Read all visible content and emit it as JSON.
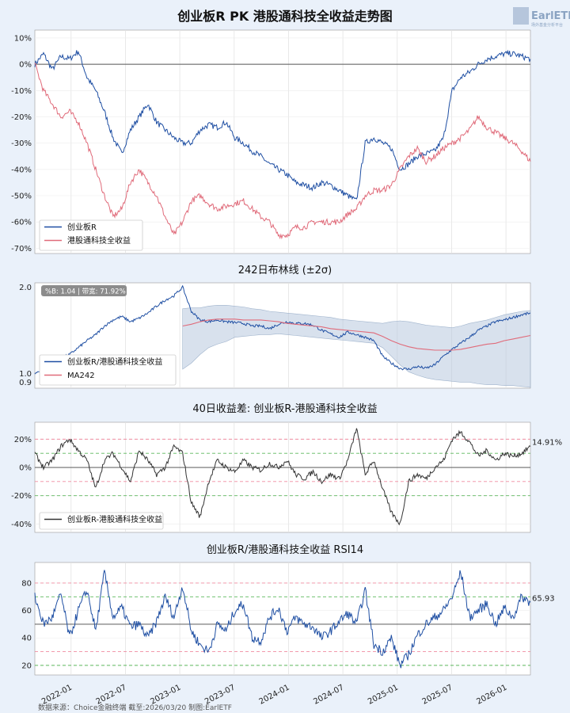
{
  "main_title": "创业板R PK 港股通科技全收益走势图",
  "logo": {
    "brand": "EarlETF",
    "sub": "场外基金分析平台"
  },
  "source": "数据来源：Choice金融终端 截至:2026/03/20 制图:EarlETF",
  "x_ticks": [
    "2022-01",
    "2022-07",
    "2023-01",
    "2023-07",
    "2024-01",
    "2024-07",
    "2025-01",
    "2025-07",
    "2026-01"
  ],
  "colors": {
    "blue": "#1f4fa3",
    "red": "#e06b7a",
    "band": "#b8c9de",
    "black": "#333333",
    "green_dash": "#5cb85c",
    "red_dash": "#f08ca0"
  },
  "chart_data": [
    {
      "type": "line",
      "title": "创业板R PK 港股通科技全收益走势图",
      "ylim": [
        -72,
        13
      ],
      "y_ticks": [
        "10%",
        "0%",
        "-10%",
        "-20%",
        "-30%",
        "-40%",
        "-50%",
        "-60%",
        "-70%"
      ],
      "legend": [
        "创业板R",
        "港股通科技全收益"
      ],
      "legend_position": "lower-left",
      "series": [
        {
          "name": "创业板R",
          "color": "blue",
          "values": [
            0,
            4,
            -2,
            3,
            2,
            5,
            -5,
            -10,
            -18,
            -28,
            -34,
            -25,
            -20,
            -15,
            -22,
            -25,
            -28,
            -30,
            -30,
            -25,
            -23,
            -24,
            -22,
            -28,
            -30,
            -33,
            -35,
            -38,
            -40,
            -42,
            -45,
            -46,
            -47,
            -45,
            -46,
            -48,
            -50,
            -52,
            -30,
            -28,
            -30,
            -32,
            -40,
            -38,
            -35,
            -34,
            -33,
            -28,
            -10,
            -5,
            -3,
            0,
            2,
            3,
            4,
            4,
            3,
            2
          ]
        },
        {
          "name": "港股通科技全收益",
          "color": "red",
          "values": [
            0,
            -10,
            -15,
            -20,
            -18,
            -22,
            -30,
            -40,
            -50,
            -58,
            -55,
            -45,
            -40,
            -45,
            -50,
            -58,
            -65,
            -60,
            -52,
            -50,
            -53,
            -55,
            -54,
            -53,
            -52,
            -55,
            -58,
            -60,
            -65,
            -65,
            -62,
            -62,
            -60,
            -60,
            -60,
            -60,
            -57,
            -55,
            -50,
            -48,
            -48,
            -46,
            -40,
            -35,
            -32,
            -37,
            -35,
            -32,
            -30,
            -28,
            -25,
            -20,
            -24,
            -26,
            -28,
            -30,
            -33,
            -37
          ]
        }
      ]
    },
    {
      "type": "line",
      "title": "242日布林线 (±2σ)",
      "ylim": [
        0.83,
        2.05
      ],
      "y_ticks": [
        "2.0",
        "1.0",
        "0.9"
      ],
      "y_tick_values": [
        2.0,
        1.0,
        0.9
      ],
      "annotation": "%B: 1.04 | 带宽: 71.92%",
      "legend": [
        "创业板R/港股通科技全收益",
        "MA242"
      ],
      "legend_position": "lower-left",
      "series": [
        {
          "name": "创业板R/港股通科技全收益",
          "color": "blue",
          "values": [
            1.0,
            1.05,
            1.12,
            1.18,
            1.22,
            1.3,
            1.38,
            1.45,
            1.55,
            1.62,
            1.66,
            1.6,
            1.64,
            1.7,
            1.78,
            1.85,
            1.9,
            2.0,
            1.72,
            1.62,
            1.6,
            1.62,
            1.6,
            1.59,
            1.58,
            1.55,
            1.55,
            1.52,
            1.57,
            1.6,
            1.58,
            1.58,
            1.56,
            1.5,
            1.46,
            1.42,
            1.48,
            1.45,
            1.42,
            1.38,
            1.2,
            1.12,
            1.06,
            1.05,
            1.08,
            1.06,
            1.1,
            1.2,
            1.28,
            1.35,
            1.42,
            1.5,
            1.55,
            1.6,
            1.62,
            1.65,
            1.68,
            1.7
          ]
        },
        {
          "name": "MA242",
          "color": "red",
          "start_index": 17,
          "values": [
            1.55,
            1.57,
            1.6,
            1.62,
            1.63,
            1.63,
            1.63,
            1.62,
            1.62,
            1.62,
            1.61,
            1.6,
            1.58,
            1.57,
            1.56,
            1.55,
            1.54,
            1.52,
            1.51,
            1.5,
            1.49,
            1.48,
            1.47,
            1.43,
            1.38,
            1.34,
            1.31,
            1.29,
            1.28,
            1.27,
            1.27,
            1.27,
            1.28,
            1.3,
            1.32,
            1.34,
            1.35,
            1.38,
            1.4,
            1.42,
            1.44
          ]
        },
        {
          "name": "upper",
          "color": "band",
          "start_index": 17,
          "values": [
            1.75,
            1.76,
            1.76,
            1.78,
            1.79,
            1.79,
            1.78,
            1.77,
            1.75,
            1.74,
            1.72,
            1.71,
            1.7,
            1.69,
            1.68,
            1.67,
            1.66,
            1.65,
            1.63,
            1.62,
            1.61,
            1.6,
            1.59,
            1.58,
            1.6,
            1.61,
            1.6,
            1.58,
            1.56,
            1.55,
            1.54,
            1.53,
            1.55,
            1.58,
            1.6,
            1.62,
            1.65,
            1.68,
            1.7,
            1.72,
            1.73
          ]
        },
        {
          "name": "lower",
          "color": "band",
          "start_index": 17,
          "values": [
            1.05,
            1.12,
            1.22,
            1.3,
            1.34,
            1.37,
            1.42,
            1.43,
            1.44,
            1.45,
            1.45,
            1.46,
            1.45,
            1.44,
            1.43,
            1.42,
            1.41,
            1.4,
            1.39,
            1.38,
            1.37,
            1.36,
            1.35,
            1.3,
            1.2,
            1.1,
            1.02,
            0.98,
            0.95,
            0.93,
            0.92,
            0.91,
            0.9,
            0.9,
            0.88,
            0.87,
            0.87,
            0.86,
            0.86,
            0.85,
            0.84
          ]
        }
      ]
    },
    {
      "type": "line",
      "title": "40日收益差: 创业板R-港股通科技全收益",
      "ylim": [
        -46,
        32
      ],
      "y_ticks": [
        "20%",
        "0%",
        "-20%",
        "-40%"
      ],
      "last_value_label": "14.91%",
      "ref_lines": {
        "solid": [
          0
        ],
        "green_dashed": [
          10,
          -20
        ],
        "red_dashed": [
          20,
          -10
        ]
      },
      "legend": [
        "创业板R-港股通科技全收益"
      ],
      "legend_position": "lower-left",
      "series": [
        {
          "name": "创业板R-港股通科技全收益",
          "color": "black",
          "values": [
            10,
            0,
            5,
            15,
            20,
            12,
            5,
            -15,
            5,
            10,
            0,
            -10,
            12,
            5,
            -5,
            0,
            15,
            10,
            -25,
            -35,
            -10,
            5,
            0,
            -3,
            5,
            0,
            -2,
            3,
            0,
            5,
            -5,
            -8,
            -3,
            -10,
            -5,
            -8,
            5,
            28,
            -5,
            5,
            -15,
            -32,
            -40,
            -10,
            -5,
            -8,
            0,
            5,
            20,
            25,
            18,
            8,
            12,
            5,
            10,
            8,
            10,
            14.91
          ]
        }
      ]
    },
    {
      "type": "line",
      "title": "创业板R/港股通科技全收益 RSI14",
      "ylim": [
        13,
        95
      ],
      "y_ticks": [
        "80",
        "60",
        "40",
        "20"
      ],
      "last_value_label": "65.93",
      "ref_lines": {
        "solid": [
          50
        ],
        "green_dashed": [
          70,
          20
        ],
        "red_dashed": [
          80,
          30
        ]
      },
      "series": [
        {
          "name": "RSI14",
          "color": "blue",
          "values": [
            70,
            50,
            55,
            72,
            40,
            60,
            75,
            45,
            88,
            55,
            62,
            48,
            50,
            40,
            52,
            70,
            55,
            78,
            45,
            35,
            30,
            50,
            45,
            60,
            65,
            40,
            38,
            55,
            62,
            45,
            55,
            50,
            48,
            40,
            45,
            52,
            58,
            50,
            75,
            35,
            30,
            40,
            20,
            28,
            42,
            50,
            55,
            60,
            70,
            88,
            55,
            60,
            65,
            50,
            62,
            55,
            70,
            65.93
          ]
        }
      ]
    }
  ]
}
